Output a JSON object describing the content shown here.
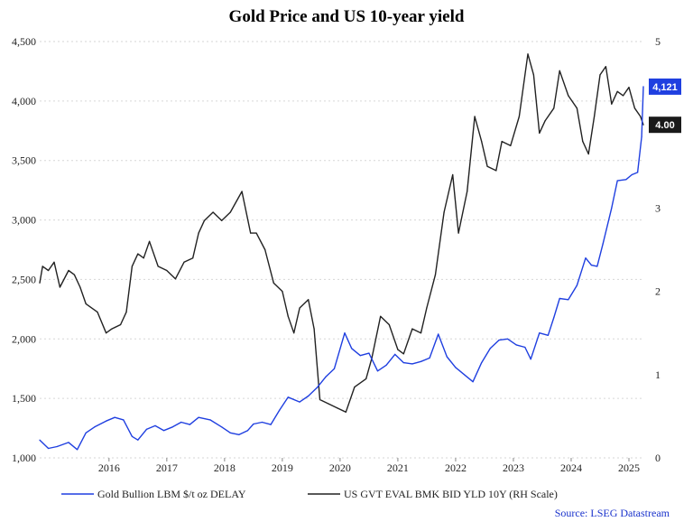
{
  "chart_data": {
    "type": "line",
    "title": "Gold Price and US 10-year yield",
    "source": "Source: LSEG Datastream",
    "x_ticks": [
      "2016",
      "2017",
      "2018",
      "2019",
      "2020",
      "2021",
      "2022",
      "2023",
      "2024",
      "2025"
    ],
    "x_range": [
      2015.3,
      2025.75
    ],
    "y_left": {
      "range": [
        1000,
        4500
      ],
      "ticks": [
        "1,000",
        "1,500",
        "2,000",
        "2,500",
        "3,000",
        "3,500",
        "4,000",
        "4,500"
      ],
      "tick_values": [
        1000,
        1500,
        2000,
        2500,
        3000,
        3500,
        4000,
        4500
      ]
    },
    "y_right": {
      "range": [
        0,
        5
      ],
      "ticks": [
        "0",
        "1",
        "2",
        "3",
        "4",
        "5"
      ],
      "tick_values": [
        0,
        1,
        2,
        3,
        4,
        5
      ]
    },
    "series": [
      {
        "name": "Gold Bullion LBM $/t oz DELAY",
        "axis": "left",
        "color": "#1f3fe0",
        "last_label": "4,121",
        "points": [
          [
            2015.3,
            1150
          ],
          [
            2015.45,
            1080
          ],
          [
            2015.6,
            1095
          ],
          [
            2015.8,
            1130
          ],
          [
            2015.95,
            1070
          ],
          [
            2016.1,
            1210
          ],
          [
            2016.25,
            1260
          ],
          [
            2016.45,
            1310
          ],
          [
            2016.6,
            1340
          ],
          [
            2016.75,
            1320
          ],
          [
            2016.9,
            1180
          ],
          [
            2017.0,
            1150
          ],
          [
            2017.15,
            1240
          ],
          [
            2017.3,
            1270
          ],
          [
            2017.45,
            1230
          ],
          [
            2017.6,
            1260
          ],
          [
            2017.75,
            1300
          ],
          [
            2017.9,
            1280
          ],
          [
            2018.05,
            1340
          ],
          [
            2018.25,
            1320
          ],
          [
            2018.45,
            1260
          ],
          [
            2018.6,
            1210
          ],
          [
            2018.75,
            1195
          ],
          [
            2018.9,
            1230
          ],
          [
            2019.0,
            1285
          ],
          [
            2019.15,
            1300
          ],
          [
            2019.3,
            1280
          ],
          [
            2019.45,
            1400
          ],
          [
            2019.6,
            1510
          ],
          [
            2019.8,
            1470
          ],
          [
            2019.95,
            1520
          ],
          [
            2020.1,
            1590
          ],
          [
            2020.25,
            1680
          ],
          [
            2020.4,
            1750
          ],
          [
            2020.58,
            2050
          ],
          [
            2020.7,
            1920
          ],
          [
            2020.85,
            1860
          ],
          [
            2021.0,
            1880
          ],
          [
            2021.15,
            1730
          ],
          [
            2021.3,
            1780
          ],
          [
            2021.45,
            1870
          ],
          [
            2021.6,
            1800
          ],
          [
            2021.75,
            1790
          ],
          [
            2021.9,
            1810
          ],
          [
            2022.05,
            1840
          ],
          [
            2022.2,
            2040
          ],
          [
            2022.35,
            1850
          ],
          [
            2022.5,
            1760
          ],
          [
            2022.65,
            1700
          ],
          [
            2022.8,
            1640
          ],
          [
            2022.95,
            1800
          ],
          [
            2023.1,
            1920
          ],
          [
            2023.25,
            1990
          ],
          [
            2023.4,
            2000
          ],
          [
            2023.55,
            1950
          ],
          [
            2023.7,
            1930
          ],
          [
            2023.8,
            1830
          ],
          [
            2023.95,
            2050
          ],
          [
            2024.1,
            2030
          ],
          [
            2024.2,
            2180
          ],
          [
            2024.3,
            2340
          ],
          [
            2024.45,
            2330
          ],
          [
            2024.6,
            2450
          ],
          [
            2024.75,
            2680
          ],
          [
            2024.85,
            2620
          ],
          [
            2024.95,
            2610
          ],
          [
            2025.05,
            2800
          ],
          [
            2025.2,
            3100
          ],
          [
            2025.3,
            3330
          ],
          [
            2025.45,
            3340
          ],
          [
            2025.55,
            3380
          ],
          [
            2025.65,
            3400
          ],
          [
            2025.72,
            3700
          ],
          [
            2025.75,
            4121
          ]
        ]
      },
      {
        "name": "US GVT EVAL BMK BID YLD 10Y (RH Scale)",
        "axis": "right",
        "color": "#222222",
        "last_label": "4.00",
        "points": [
          [
            2015.3,
            2.1
          ],
          [
            2015.35,
            2.3
          ],
          [
            2015.45,
            2.25
          ],
          [
            2015.55,
            2.35
          ],
          [
            2015.65,
            2.05
          ],
          [
            2015.8,
            2.25
          ],
          [
            2015.9,
            2.2
          ],
          [
            2016.0,
            2.05
          ],
          [
            2016.1,
            1.85
          ],
          [
            2016.3,
            1.75
          ],
          [
            2016.45,
            1.5
          ],
          [
            2016.55,
            1.55
          ],
          [
            2016.7,
            1.6
          ],
          [
            2016.8,
            1.75
          ],
          [
            2016.9,
            2.3
          ],
          [
            2017.0,
            2.45
          ],
          [
            2017.1,
            2.4
          ],
          [
            2017.2,
            2.6
          ],
          [
            2017.35,
            2.3
          ],
          [
            2017.5,
            2.25
          ],
          [
            2017.65,
            2.15
          ],
          [
            2017.8,
            2.35
          ],
          [
            2017.95,
            2.4
          ],
          [
            2018.05,
            2.7
          ],
          [
            2018.15,
            2.85
          ],
          [
            2018.3,
            2.95
          ],
          [
            2018.45,
            2.85
          ],
          [
            2018.6,
            2.95
          ],
          [
            2018.8,
            3.2
          ],
          [
            2018.95,
            2.7
          ],
          [
            2019.05,
            2.7
          ],
          [
            2019.2,
            2.5
          ],
          [
            2019.35,
            2.1
          ],
          [
            2019.5,
            2.0
          ],
          [
            2019.6,
            1.7
          ],
          [
            2019.7,
            1.5
          ],
          [
            2019.8,
            1.8
          ],
          [
            2019.95,
            1.9
          ],
          [
            2020.05,
            1.55
          ],
          [
            2020.15,
            0.7
          ],
          [
            2020.3,
            0.65
          ],
          [
            2020.45,
            0.6
          ],
          [
            2020.6,
            0.55
          ],
          [
            2020.75,
            0.85
          ],
          [
            2020.95,
            0.95
          ],
          [
            2021.05,
            1.2
          ],
          [
            2021.2,
            1.7
          ],
          [
            2021.35,
            1.6
          ],
          [
            2021.5,
            1.3
          ],
          [
            2021.6,
            1.25
          ],
          [
            2021.75,
            1.55
          ],
          [
            2021.9,
            1.5
          ],
          [
            2022.0,
            1.8
          ],
          [
            2022.15,
            2.2
          ],
          [
            2022.3,
            2.95
          ],
          [
            2022.45,
            3.4
          ],
          [
            2022.55,
            2.7
          ],
          [
            2022.7,
            3.2
          ],
          [
            2022.83,
            4.1
          ],
          [
            2022.95,
            3.8
          ],
          [
            2023.05,
            3.5
          ],
          [
            2023.2,
            3.45
          ],
          [
            2023.3,
            3.8
          ],
          [
            2023.45,
            3.75
          ],
          [
            2023.6,
            4.1
          ],
          [
            2023.75,
            4.85
          ],
          [
            2023.85,
            4.6
          ],
          [
            2023.95,
            3.9
          ],
          [
            2024.05,
            4.05
          ],
          [
            2024.2,
            4.2
          ],
          [
            2024.3,
            4.65
          ],
          [
            2024.45,
            4.35
          ],
          [
            2024.6,
            4.2
          ],
          [
            2024.7,
            3.8
          ],
          [
            2024.8,
            3.65
          ],
          [
            2024.9,
            4.1
          ],
          [
            2025.0,
            4.6
          ],
          [
            2025.1,
            4.7
          ],
          [
            2025.2,
            4.25
          ],
          [
            2025.3,
            4.4
          ],
          [
            2025.4,
            4.35
          ],
          [
            2025.5,
            4.45
          ],
          [
            2025.6,
            4.2
          ],
          [
            2025.7,
            4.1
          ],
          [
            2025.75,
            4.0
          ]
        ]
      }
    ]
  }
}
